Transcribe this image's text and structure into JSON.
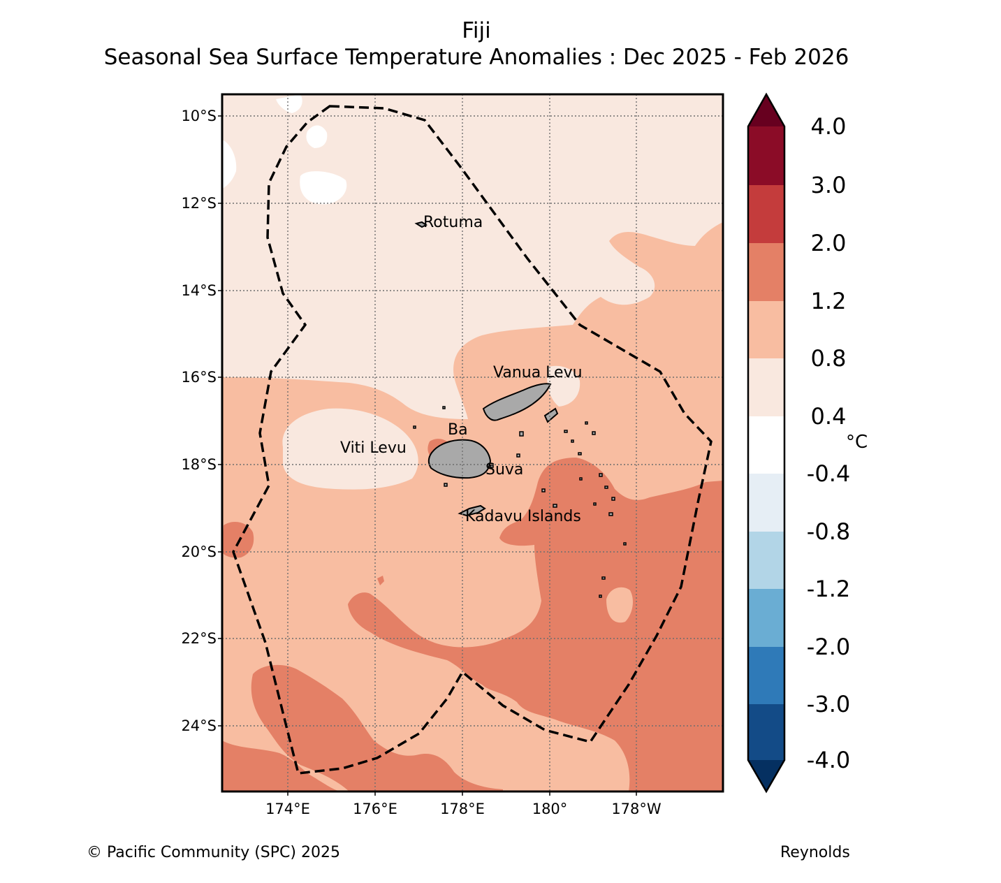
{
  "title": "Fiji",
  "subtitle": "Seasonal Sea Surface Temperature Anomalies : Dec 2025 - Feb 2026",
  "lat_labels": [
    "10°S",
    "12°S",
    "14°S",
    "16°S",
    "18°S",
    "20°S",
    "22°S",
    "24°S"
  ],
  "lon_labels": [
    "174°E",
    "176°E",
    "178°E",
    "180°",
    "178°W"
  ],
  "places": {
    "rotuma": "Rotuma",
    "vanua_levu": "Vanua Levu",
    "ba": "Ba",
    "viti_levu": "Viti Levu",
    "suva": "Suva",
    "kadavu": "Kadavu Islands"
  },
  "colorbar": {
    "labels": [
      "4.0",
      "3.0",
      "2.0",
      "1.2",
      "0.8",
      "0.4",
      "-0.4",
      "-0.8",
      "-1.2",
      "-2.0",
      "-3.0",
      "-4.0"
    ],
    "colors": [
      "#67001f",
      "#8b0c27",
      "#c43c3c",
      "#e48066",
      "#f8bda1",
      "#f9e8df",
      "#ffffff",
      "#e6eef5",
      "#b2d5e7",
      "#6aadd3",
      "#2f7ab8",
      "#134b87",
      "#053061"
    ],
    "unit": "°C"
  },
  "fills": {
    "light": "#f9e8df",
    "mid": "#f8bda1",
    "warm": "#e48066",
    "white": "#ffffff",
    "land": "#a9a9a9"
  },
  "footer": {
    "copyright": "© Pacific Community (SPC) 2025",
    "source": "Reynolds"
  }
}
